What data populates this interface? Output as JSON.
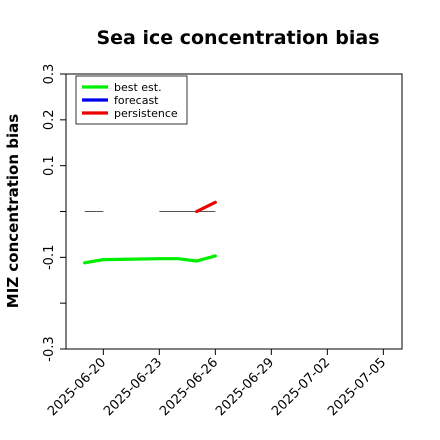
{
  "chart_data": {
    "type": "line",
    "title": "Sea ice concentration bias",
    "xlabel": "",
    "ylabel": "MIZ concentration bias",
    "ylim": [
      -0.3,
      0.3
    ],
    "yticks": [
      -0.3,
      -0.2,
      -0.1,
      0.0,
      0.1,
      0.2,
      0.3
    ],
    "ytick_labels": [
      "-0.3",
      "",
      "-0.1",
      "",
      "0.1",
      "0.2",
      "0.3"
    ],
    "xlim": [
      "2025-06-18",
      "2025-07-06"
    ],
    "xticks": [
      "2025-06-20",
      "2025-06-23",
      "2025-06-26",
      "2025-06-29",
      "2025-07-02",
      "2025-07-05"
    ],
    "xtick_labels": [
      "2025-06-20",
      "2025-06-23",
      "2025-06-26",
      "2025-06-29",
      "2025-07-02",
      "2025-07-05"
    ],
    "xtick_colors": [
      "#000000",
      "#000000",
      "#228b22",
      "#000000",
      "#000000",
      "#000000"
    ],
    "grid": false,
    "legend_position": "top-left",
    "series": [
      {
        "name": "best est.",
        "color": "#00ee00",
        "style": "thick",
        "x": [
          "2025-06-19",
          "2025-06-20",
          "2025-06-23",
          "2025-06-24",
          "2025-06-25",
          "2025-06-26"
        ],
        "y": [
          -0.112,
          -0.105,
          -0.103,
          -0.103,
          -0.108,
          -0.097
        ]
      },
      {
        "name": "forecast",
        "color": "#0000ee",
        "style": "thick",
        "x": [],
        "y": []
      },
      {
        "name": "persistence",
        "color": "#ee0000",
        "style": "thick",
        "x": [
          "2025-06-25",
          "2025-06-26"
        ],
        "y": [
          0.0,
          0.02
        ]
      }
    ],
    "extra_lines": [
      {
        "color": "#555555",
        "x": [
          "2025-06-19",
          "2025-06-20"
        ],
        "y": [
          0.0,
          0.0
        ]
      },
      {
        "color": "#555555",
        "x": [
          "2025-06-23",
          "2025-06-26"
        ],
        "y": [
          0.0,
          0.0
        ]
      },
      {
        "color": "#00cc00",
        "x": [
          "2025-06-20",
          "2025-06-23"
        ],
        "y": [
          -0.105,
          -0.103
        ]
      }
    ]
  }
}
